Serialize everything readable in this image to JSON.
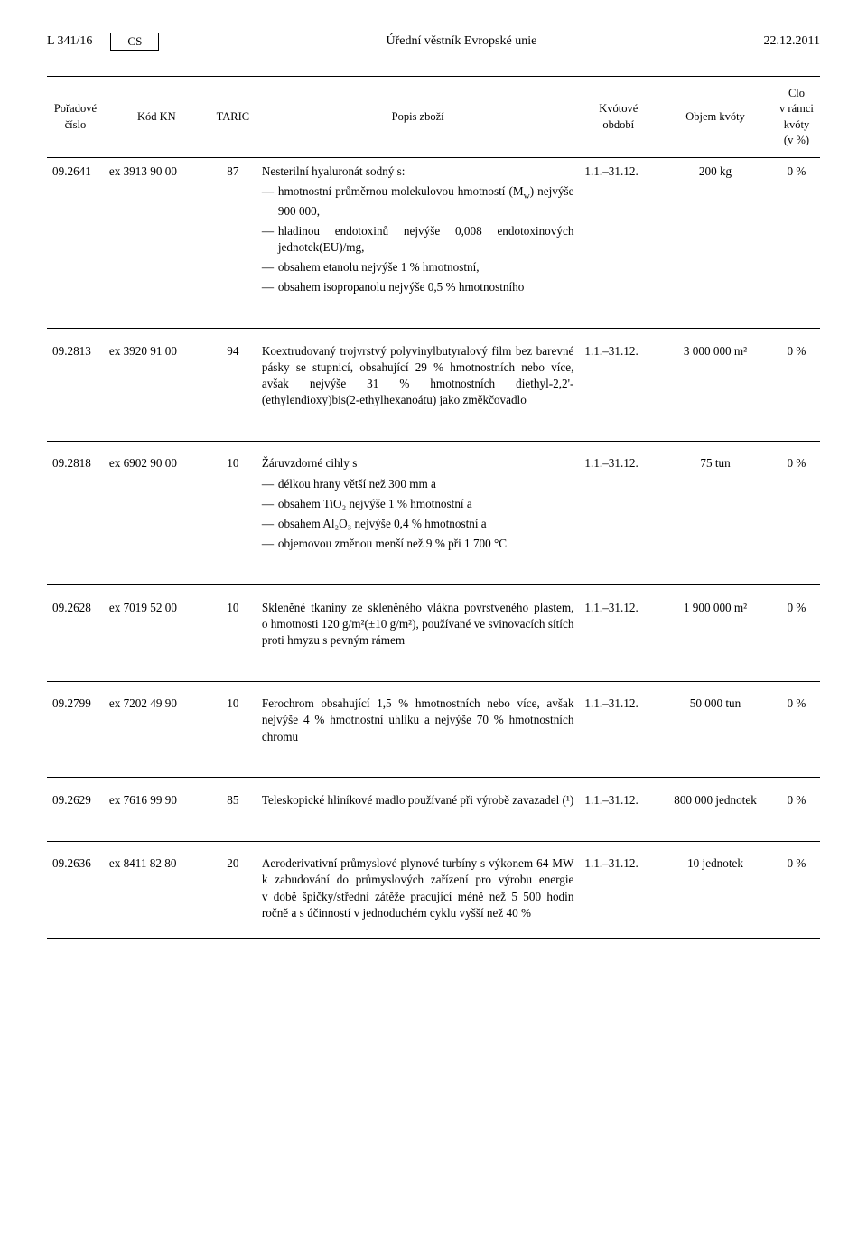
{
  "header": {
    "page_num": "L 341/16",
    "lang": "CS",
    "journal": "Úřední věstník Evropské unie",
    "date": "22.12.2011"
  },
  "columns": {
    "seq": "Pořadové číslo",
    "cn": "Kód KN",
    "taric": "TARIC",
    "desc": "Popis zboží",
    "period": "Kvótové období",
    "vol": "Objem kvóty",
    "duty": "Clo v rámci kvóty (v %)"
  },
  "rows": [
    {
      "seq": "09.2641",
      "cn": "ex 3913 90 00",
      "taric": "87",
      "desc_lead": "Nesterilní hyaluronát sodný s:",
      "desc_items": [
        "hmotnostní průměrnou moleku­lovou hmotností (M_w) nejvýše 900 000,",
        "hladinou endotoxinů nejvýše 0,008 endotoxinových jednotek(EU)/mg,",
        "obsahem etanolu nejvýše 1 % hmotnostní,",
        "obsahem isopropanolu nejvýše 0,5 % hmotnostního"
      ],
      "period": "1.1.–31.12.",
      "vol": "200 kg",
      "duty": "0 %"
    },
    {
      "seq": "09.2813",
      "cn": "ex 3920 91 00",
      "taric": "94",
      "desc_para": "Koextrudovaný trojvrstvý polyvinyl­butyralový film bez barevné pásky se stupnicí, obsahující 29 % hmot­nostních nebo více, avšak nejvýše 31 % hmotnostních diethyl-2,2'-(ethylendioxy)bis(2-ethylhexanoátu) jako změkčovadlo",
      "period": "1.1.–31.12.",
      "vol": "3 000 000 m²",
      "duty": "0 %"
    },
    {
      "seq": "09.2818",
      "cn": "ex 6902 90 00",
      "taric": "10",
      "desc_lead": "Žáruvzdorné cihly s",
      "desc_items": [
        "délkou hrany větší než 300 mm a",
        "obsahem TiO₂ nejvýše 1 % hmotnostní a",
        "obsahem Al₂O₃ nejvýše 0,4 % hmotnostní a",
        "objemovou změnou menší než 9 % při 1 700 °C"
      ],
      "period": "1.1.–31.12.",
      "vol": "75 tun",
      "duty": "0 %"
    },
    {
      "seq": "09.2628",
      "cn": "ex 7019 52 00",
      "taric": "10",
      "desc_para": "Skleněné tkaniny ze skleněného vlákna povrstveného plastem, o hmotnosti 120 g/m²(±10 g/m²), používané ve svinovacích sítích proti hmyzu s pevným rámem",
      "period": "1.1.–31.12.",
      "vol": "1 900 000 m²",
      "duty": "0 %"
    },
    {
      "seq": "09.2799",
      "cn": "ex 7202 49 90",
      "taric": "10",
      "desc_para": "Ferochrom obsahující 1,5 % hmot­nostních nebo více, avšak nejvýše 4 % hmotnostní uhlíku a nejvýše 70 % hmotnostních chromu",
      "period": "1.1.–31.12.",
      "vol": "50 000 tun",
      "duty": "0 %"
    },
    {
      "seq": "09.2629",
      "cn": "ex 7616 99 90",
      "taric": "85",
      "desc_para": "Teleskopické hliníkové madlo použí­vané při výrobě zavazadel (¹)",
      "period": "1.1.–31.12.",
      "vol": "800 000 jednotek",
      "duty": "0 %"
    },
    {
      "seq": "09.2636",
      "cn": "ex 8411 82 80",
      "taric": "20",
      "desc_para": "Aeroderivativní průmyslové plynové turbíny s výkonem 64 MW k zabudování do průmyslových zaří­zení pro výrobu energie v době špičky/střední zátěže pracující méně než 5 500 hodin ročně a s účinností v jednoduchém cyklu vyšší než 40 %",
      "period": "1.1.–31.12.",
      "vol": "10 jednotek",
      "duty": "0 %"
    }
  ]
}
